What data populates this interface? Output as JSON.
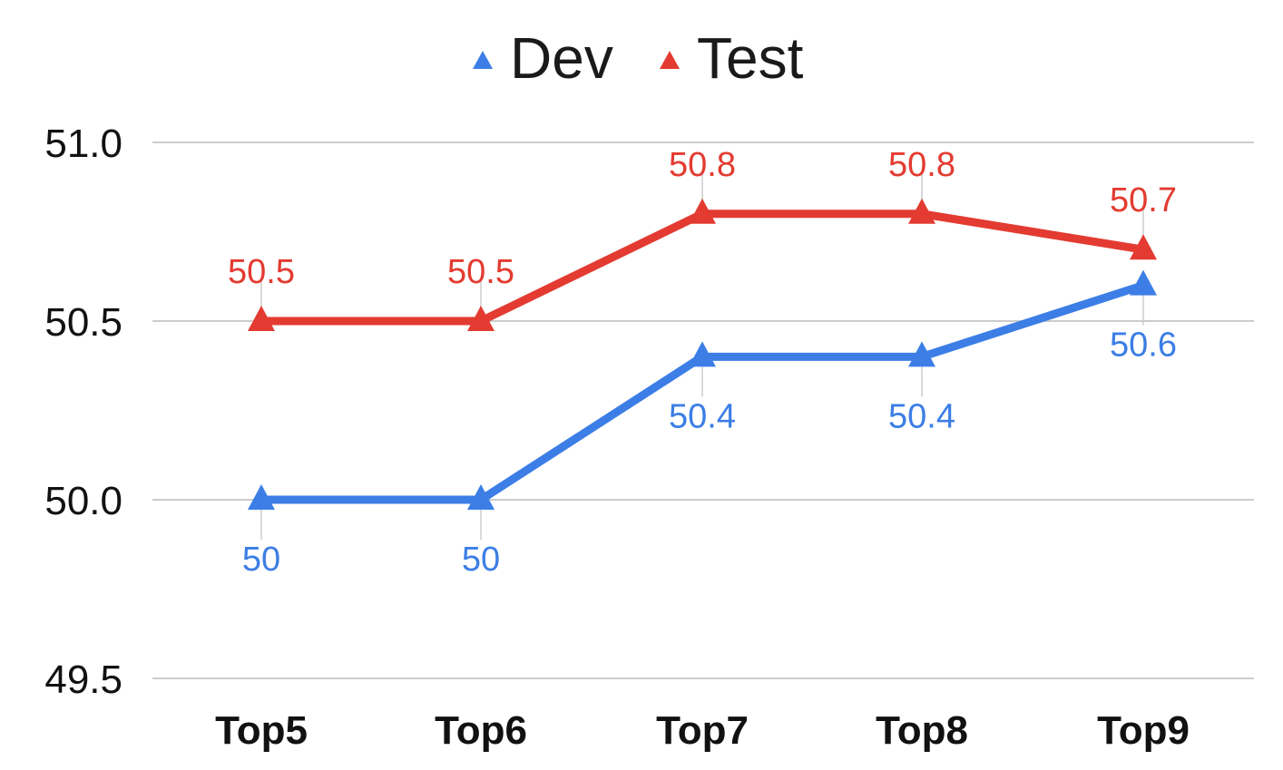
{
  "chart_data": {
    "type": "line",
    "title": "",
    "xlabel": "",
    "ylabel": "",
    "categories": [
      "Top5",
      "Top6",
      "Top7",
      "Top8",
      "Top9"
    ],
    "ylim": [
      49.5,
      51.0
    ],
    "yticks": [
      "49.5",
      "50.0",
      "50.5",
      "51.0"
    ],
    "grid": true,
    "legend_position": "top-center",
    "marker": "triangle",
    "series": [
      {
        "name": "Dev",
        "color": "#3c7ee6",
        "values": [
          50.0,
          50.0,
          50.4,
          50.4,
          50.6
        ],
        "labels": [
          "50",
          "50",
          "50.4",
          "50.4",
          "50.6"
        ],
        "label_side": "below"
      },
      {
        "name": "Test",
        "color": "#e33b31",
        "values": [
          50.5,
          50.5,
          50.8,
          50.8,
          50.7
        ],
        "labels": [
          "50.5",
          "50.5",
          "50.8",
          "50.8",
          "50.7"
        ],
        "label_side": "above"
      }
    ]
  }
}
